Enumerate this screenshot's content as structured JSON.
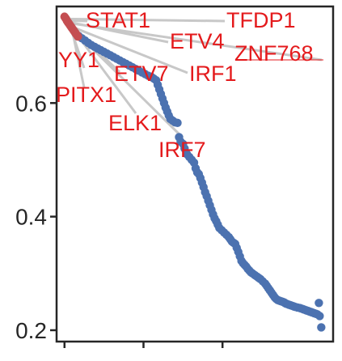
{
  "chart_data": {
    "type": "scatter",
    "ylim": [
      0.18,
      0.77
    ],
    "yticks": [
      0.2,
      0.4,
      0.6
    ],
    "ytick_labels": [
      "0.2",
      "0.4",
      "0.6"
    ],
    "xlim": [
      -10,
      340
    ],
    "xticks": [
      0,
      100,
      200
    ],
    "xtick_labels": [
      "",
      "",
      ""
    ],
    "grid": false,
    "colors": {
      "highlight": "#c44e52",
      "default": "#4c72b0",
      "annotation": "#e41a1c",
      "connector": "#c8c8c8"
    },
    "highlighted_points": [
      {
        "x": 0,
        "y": 0.752
      },
      {
        "x": 1,
        "y": 0.75
      },
      {
        "x": 2,
        "y": 0.748
      },
      {
        "x": 3,
        "y": 0.745
      },
      {
        "x": 4,
        "y": 0.743
      },
      {
        "x": 5,
        "y": 0.741
      },
      {
        "x": 6,
        "y": 0.739
      },
      {
        "x": 7,
        "y": 0.737
      },
      {
        "x": 8,
        "y": 0.735
      },
      {
        "x": 9,
        "y": 0.733
      },
      {
        "x": 10,
        "y": 0.731
      },
      {
        "x": 11,
        "y": 0.729
      },
      {
        "x": 12,
        "y": 0.727
      },
      {
        "x": 13,
        "y": 0.725
      },
      {
        "x": 14,
        "y": 0.723
      },
      {
        "x": 15,
        "y": 0.721
      },
      {
        "x": 16,
        "y": 0.719
      },
      {
        "x": 17,
        "y": 0.717
      }
    ],
    "points": [
      {
        "x": 18,
        "y": 0.718
      },
      {
        "x": 22,
        "y": 0.714
      },
      {
        "x": 26,
        "y": 0.71
      },
      {
        "x": 30,
        "y": 0.706
      },
      {
        "x": 34,
        "y": 0.702
      },
      {
        "x": 38,
        "y": 0.699
      },
      {
        "x": 42,
        "y": 0.696
      },
      {
        "x": 46,
        "y": 0.693
      },
      {
        "x": 50,
        "y": 0.69
      },
      {
        "x": 54,
        "y": 0.687
      },
      {
        "x": 58,
        "y": 0.684
      },
      {
        "x": 62,
        "y": 0.681
      },
      {
        "x": 66,
        "y": 0.678
      },
      {
        "x": 70,
        "y": 0.675
      },
      {
        "x": 74,
        "y": 0.672
      },
      {
        "x": 78,
        "y": 0.669
      },
      {
        "x": 82,
        "y": 0.666
      },
      {
        "x": 86,
        "y": 0.663
      },
      {
        "x": 90,
        "y": 0.66
      },
      {
        "x": 94,
        "y": 0.657
      },
      {
        "x": 98,
        "y": 0.654
      },
      {
        "x": 102,
        "y": 0.651
      },
      {
        "x": 106,
        "y": 0.648
      },
      {
        "x": 110,
        "y": 0.646
      },
      {
        "x": 113,
        "y": 0.643
      },
      {
        "x": 116,
        "y": 0.64
      },
      {
        "x": 118,
        "y": 0.632
      },
      {
        "x": 120,
        "y": 0.624
      },
      {
        "x": 122,
        "y": 0.616
      },
      {
        "x": 124,
        "y": 0.608
      },
      {
        "x": 126,
        "y": 0.6
      },
      {
        "x": 128,
        "y": 0.592
      },
      {
        "x": 130,
        "y": 0.585
      },
      {
        "x": 132,
        "y": 0.578
      },
      {
        "x": 134,
        "y": 0.572
      },
      {
        "x": 137,
        "y": 0.569
      },
      {
        "x": 140,
        "y": 0.566
      },
      {
        "x": 143,
        "y": 0.565
      },
      {
        "x": 145,
        "y": 0.54
      },
      {
        "x": 147,
        "y": 0.532
      },
      {
        "x": 150,
        "y": 0.528
      },
      {
        "x": 152,
        "y": 0.52
      },
      {
        "x": 155,
        "y": 0.51
      },
      {
        "x": 158,
        "y": 0.505
      },
      {
        "x": 161,
        "y": 0.5
      },
      {
        "x": 164,
        "y": 0.495
      },
      {
        "x": 166,
        "y": 0.485
      },
      {
        "x": 168,
        "y": 0.478
      },
      {
        "x": 170,
        "y": 0.475
      },
      {
        "x": 172,
        "y": 0.468
      },
      {
        "x": 174,
        "y": 0.46
      },
      {
        "x": 176,
        "y": 0.452
      },
      {
        "x": 178,
        "y": 0.443
      },
      {
        "x": 180,
        "y": 0.436
      },
      {
        "x": 182,
        "y": 0.428
      },
      {
        "x": 184,
        "y": 0.42
      },
      {
        "x": 186,
        "y": 0.412
      },
      {
        "x": 188,
        "y": 0.404
      },
      {
        "x": 190,
        "y": 0.397
      },
      {
        "x": 192,
        "y": 0.392
      },
      {
        "x": 194,
        "y": 0.386
      },
      {
        "x": 196,
        "y": 0.38
      },
      {
        "x": 199,
        "y": 0.376
      },
      {
        "x": 202,
        "y": 0.372
      },
      {
        "x": 205,
        "y": 0.368
      },
      {
        "x": 208,
        "y": 0.364
      },
      {
        "x": 210,
        "y": 0.36
      },
      {
        "x": 212,
        "y": 0.356
      },
      {
        "x": 214,
        "y": 0.354
      },
      {
        "x": 216,
        "y": 0.352
      },
      {
        "x": 218,
        "y": 0.345
      },
      {
        "x": 220,
        "y": 0.338
      },
      {
        "x": 222,
        "y": 0.33
      },
      {
        "x": 224,
        "y": 0.322
      },
      {
        "x": 226,
        "y": 0.318
      },
      {
        "x": 228,
        "y": 0.315
      },
      {
        "x": 230,
        "y": 0.312
      },
      {
        "x": 232,
        "y": 0.308
      },
      {
        "x": 234,
        "y": 0.305
      },
      {
        "x": 236,
        "y": 0.302
      },
      {
        "x": 238,
        "y": 0.3
      },
      {
        "x": 241,
        "y": 0.297
      },
      {
        "x": 244,
        "y": 0.294
      },
      {
        "x": 246,
        "y": 0.292
      },
      {
        "x": 248,
        "y": 0.29
      },
      {
        "x": 251,
        "y": 0.286
      },
      {
        "x": 254,
        "y": 0.282
      },
      {
        "x": 256,
        "y": 0.278
      },
      {
        "x": 258,
        "y": 0.274
      },
      {
        "x": 260,
        "y": 0.27
      },
      {
        "x": 262,
        "y": 0.266
      },
      {
        "x": 264,
        "y": 0.262
      },
      {
        "x": 266,
        "y": 0.258
      },
      {
        "x": 268,
        "y": 0.255
      },
      {
        "x": 270,
        "y": 0.253
      },
      {
        "x": 272,
        "y": 0.252
      },
      {
        "x": 274,
        "y": 0.251
      },
      {
        "x": 276,
        "y": 0.25
      },
      {
        "x": 278,
        "y": 0.249
      },
      {
        "x": 279,
        "y": 0.248
      },
      {
        "x": 280,
        "y": 0.247
      },
      {
        "x": 282,
        "y": 0.246
      },
      {
        "x": 284,
        "y": 0.245
      },
      {
        "x": 286,
        "y": 0.244
      },
      {
        "x": 288,
        "y": 0.243
      },
      {
        "x": 290,
        "y": 0.242
      },
      {
        "x": 292,
        "y": 0.241
      },
      {
        "x": 295,
        "y": 0.24
      },
      {
        "x": 298,
        "y": 0.239
      },
      {
        "x": 300,
        "y": 0.238
      },
      {
        "x": 302,
        "y": 0.237
      },
      {
        "x": 304,
        "y": 0.236
      },
      {
        "x": 306,
        "y": 0.235
      },
      {
        "x": 308,
        "y": 0.234
      },
      {
        "x": 310,
        "y": 0.233
      },
      {
        "x": 312,
        "y": 0.232
      },
      {
        "x": 314,
        "y": 0.231
      },
      {
        "x": 316,
        "y": 0.23
      },
      {
        "x": 318,
        "y": 0.229
      },
      {
        "x": 320,
        "y": 0.228
      },
      {
        "x": 322,
        "y": 0.248
      },
      {
        "x": 323,
        "y": 0.225
      },
      {
        "x": 325,
        "y": 0.205
      }
    ],
    "annotations": [
      {
        "label": "STAT1",
        "x": 3,
        "y": 0.745
      },
      {
        "label": "TFDP1",
        "x": 2,
        "y": 0.748
      },
      {
        "label": "ETV4",
        "x": 4,
        "y": 0.743
      },
      {
        "label": "ZNF768",
        "x": 5,
        "y": 0.741
      },
      {
        "label": "YY1",
        "x": 6,
        "y": 0.739
      },
      {
        "label": "ETV7",
        "x": 7,
        "y": 0.737
      },
      {
        "label": "IRF1",
        "x": 8,
        "y": 0.735
      },
      {
        "label": "PITX1",
        "x": 9,
        "y": 0.733
      },
      {
        "label": "ELK1",
        "x": 10,
        "y": 0.731
      },
      {
        "label": "IRF7",
        "x": 11,
        "y": 0.729
      }
    ]
  }
}
